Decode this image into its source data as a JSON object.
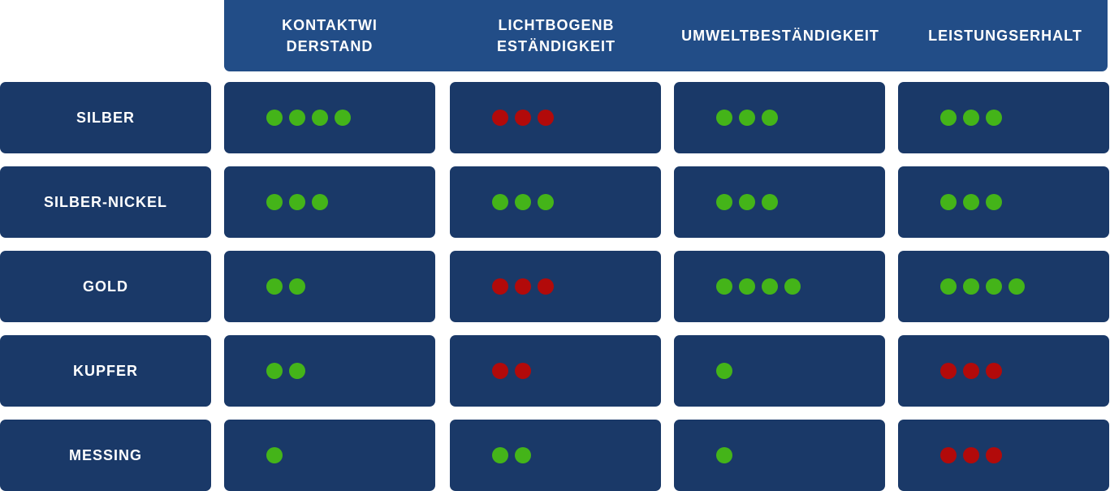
{
  "colors": {
    "header": "#224d87",
    "cell": "#1a3968",
    "good": "#44b419",
    "bad": "#b20a0a"
  },
  "columns": [
    {
      "label": "KONTAKTWI\nDERSTAND"
    },
    {
      "label": "LICHTBOGENB\nESTÄNDIGKEIT"
    },
    {
      "label": "UMWELTBESTÄNDIGKEIT"
    },
    {
      "label": "LEISTUNGSERHALT"
    }
  ],
  "rows": [
    {
      "label": "SILBER",
      "ratings": [
        {
          "count": 4,
          "color": "green"
        },
        {
          "count": 3,
          "color": "red"
        },
        {
          "count": 3,
          "color": "green"
        },
        {
          "count": 3,
          "color": "green"
        }
      ]
    },
    {
      "label": "SILBER-NICKEL",
      "ratings": [
        {
          "count": 3,
          "color": "green"
        },
        {
          "count": 3,
          "color": "green"
        },
        {
          "count": 3,
          "color": "green"
        },
        {
          "count": 3,
          "color": "green"
        }
      ]
    },
    {
      "label": "GOLD",
      "ratings": [
        {
          "count": 2,
          "color": "green"
        },
        {
          "count": 3,
          "color": "red"
        },
        {
          "count": 4,
          "color": "green"
        },
        {
          "count": 4,
          "color": "green"
        }
      ]
    },
    {
      "label": "KUPFER",
      "ratings": [
        {
          "count": 2,
          "color": "green"
        },
        {
          "count": 2,
          "color": "red"
        },
        {
          "count": 1,
          "color": "green"
        },
        {
          "count": 3,
          "color": "red"
        }
      ]
    },
    {
      "label": "MESSING",
      "ratings": [
        {
          "count": 1,
          "color": "green"
        },
        {
          "count": 2,
          "color": "green"
        },
        {
          "count": 1,
          "color": "green"
        },
        {
          "count": 3,
          "color": "red"
        }
      ]
    }
  ]
}
